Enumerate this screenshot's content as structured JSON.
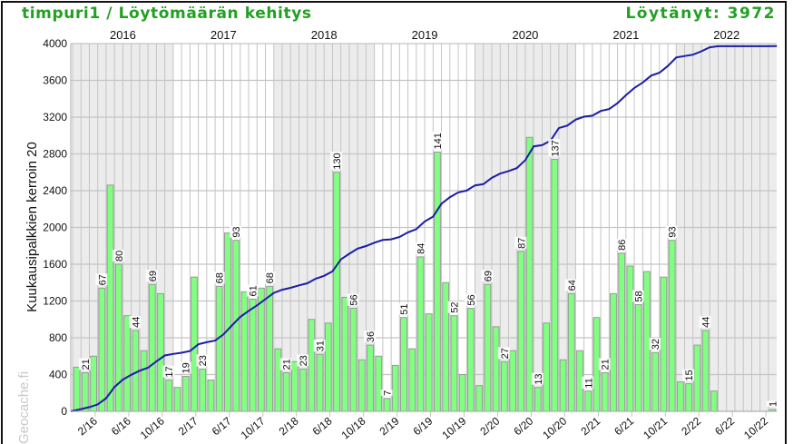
{
  "header": {
    "title": "timpuri1 / Löytömäärän kehitys",
    "found": "Löytänyt: 3972"
  },
  "watermark": "Geocache.fi",
  "colors": {
    "title": "#22a022",
    "bar": "#80ff80",
    "bar_border": "#999999",
    "line": "#1c1ca8",
    "band": "#ececec",
    "grid": "#c4c4c4"
  },
  "chart_data": {
    "type": "bar",
    "ylabel": "Kuukausipalkkien kerroin 20",
    "ylim": [
      0,
      4000
    ],
    "yticks": [
      "0",
      "400",
      "800",
      "1200",
      "1600",
      "2000",
      "2400",
      "2800",
      "3200",
      "3600",
      "4000"
    ],
    "bar_multiplier": 20,
    "grid": true,
    "shaded_years": [
      2016,
      2018,
      2020,
      2022
    ],
    "years": [
      "2016",
      "2017",
      "2018",
      "2019",
      "2020",
      "2021",
      "2022"
    ],
    "xtick_labels": [
      "2/16",
      "6/16",
      "10/16",
      "2/17",
      "6/17",
      "10/17",
      "2/18",
      "6/18",
      "10/18",
      "2/19",
      "6/19",
      "10/19",
      "2/20",
      "6/20",
      "10/20",
      "2/21",
      "6/21",
      "10/21",
      "2/22",
      "6/22",
      "10/22"
    ],
    "categories": [
      "2016-01",
      "2016-02",
      "2016-03",
      "2016-04",
      "2016-05",
      "2016-06",
      "2016-07",
      "2016-08",
      "2016-09",
      "2016-10",
      "2016-11",
      "2016-12",
      "2017-01",
      "2017-02",
      "2017-03",
      "2017-04",
      "2017-05",
      "2017-06",
      "2017-07",
      "2017-08",
      "2017-09",
      "2017-10",
      "2017-11",
      "2017-12",
      "2018-01",
      "2018-02",
      "2018-03",
      "2018-04",
      "2018-05",
      "2018-06",
      "2018-07",
      "2018-08",
      "2018-09",
      "2018-10",
      "2018-11",
      "2018-12",
      "2019-01",
      "2019-02",
      "2019-03",
      "2019-04",
      "2019-05",
      "2019-06",
      "2019-07",
      "2019-08",
      "2019-09",
      "2019-10",
      "2019-11",
      "2019-12",
      "2020-01",
      "2020-02",
      "2020-03",
      "2020-04",
      "2020-05",
      "2020-06",
      "2020-07",
      "2020-08",
      "2020-09",
      "2020-10",
      "2020-11",
      "2020-12",
      "2021-01",
      "2021-02",
      "2021-03",
      "2021-04",
      "2021-05",
      "2021-06",
      "2021-07",
      "2021-08",
      "2021-09",
      "2021-10",
      "2021-11",
      "2021-12",
      "2022-01",
      "2022-02",
      "2022-03",
      "2022-04",
      "2022-05",
      "2022-06",
      "2022-07",
      "2022-08",
      "2022-09",
      "2022-10",
      "2022-11",
      "2022-12"
    ],
    "series": [
      {
        "kind": "bar",
        "values": [
          24,
          21,
          30,
          67,
          123,
          80,
          52,
          44,
          33,
          69,
          64,
          17,
          13,
          19,
          73,
          23,
          17,
          68,
          97,
          93,
          65,
          61,
          67,
          68,
          34,
          21,
          27,
          23,
          50,
          31,
          48,
          130,
          62,
          56,
          28,
          36,
          30,
          7,
          25,
          51,
          34,
          84,
          53,
          141,
          70,
          52,
          20,
          56,
          14,
          69,
          46,
          27,
          33,
          87,
          149,
          13,
          48,
          137,
          28,
          64,
          33,
          11,
          51,
          21,
          64,
          86,
          79,
          58,
          76,
          32,
          73,
          93,
          16,
          15,
          36,
          44,
          11,
          0,
          0,
          0,
          0,
          0,
          0,
          1
        ]
      },
      {
        "kind": "line",
        "values": [
          24,
          45,
          75,
          142,
          265,
          345,
          397,
          441,
          474,
          543,
          607,
          624,
          637,
          656,
          729,
          752,
          769,
          837,
          934,
          1027,
          1092,
          1153,
          1220,
          1288,
          1322,
          1343,
          1370,
          1393,
          1443,
          1474,
          1522,
          1652,
          1714,
          1770,
          1798,
          1834,
          1864,
          1871,
          1896,
          1947,
          1981,
          2065,
          2118,
          2259,
          2329,
          2381,
          2401,
          2457,
          2471,
          2540,
          2586,
          2613,
          2646,
          2733,
          2882,
          2895,
          2943,
          3080,
          3108,
          3172,
          3205,
          3216,
          3267,
          3288,
          3352,
          3438,
          3517,
          3575,
          3651,
          3683,
          3756,
          3849,
          3865,
          3880,
          3916,
          3960,
          3971,
          3971,
          3971,
          3971,
          3971,
          3971,
          3971,
          3972
        ]
      }
    ],
    "data_labels": [
      "",
      "21",
      "",
      "67",
      "",
      "80",
      "",
      "44",
      "",
      "69",
      "",
      "17",
      "",
      "19",
      "",
      "23",
      "",
      "68",
      "",
      "93",
      "",
      "61",
      "",
      "68",
      "",
      "21",
      "",
      "23",
      "",
      "31",
      "",
      "130",
      "",
      "56",
      "",
      "36",
      "",
      "7",
      "",
      "51",
      "",
      "84",
      "",
      "141",
      "",
      "52",
      "",
      "56",
      "",
      "69",
      "",
      "27",
      "",
      "87",
      "",
      "13",
      "",
      "137",
      "",
      "64",
      "",
      "11",
      "",
      "21",
      "",
      "86",
      "",
      "58",
      "",
      "32",
      "",
      "93",
      "",
      "15",
      "",
      "44",
      "",
      "",
      "",
      "",
      "",
      "",
      "",
      "1"
    ]
  }
}
